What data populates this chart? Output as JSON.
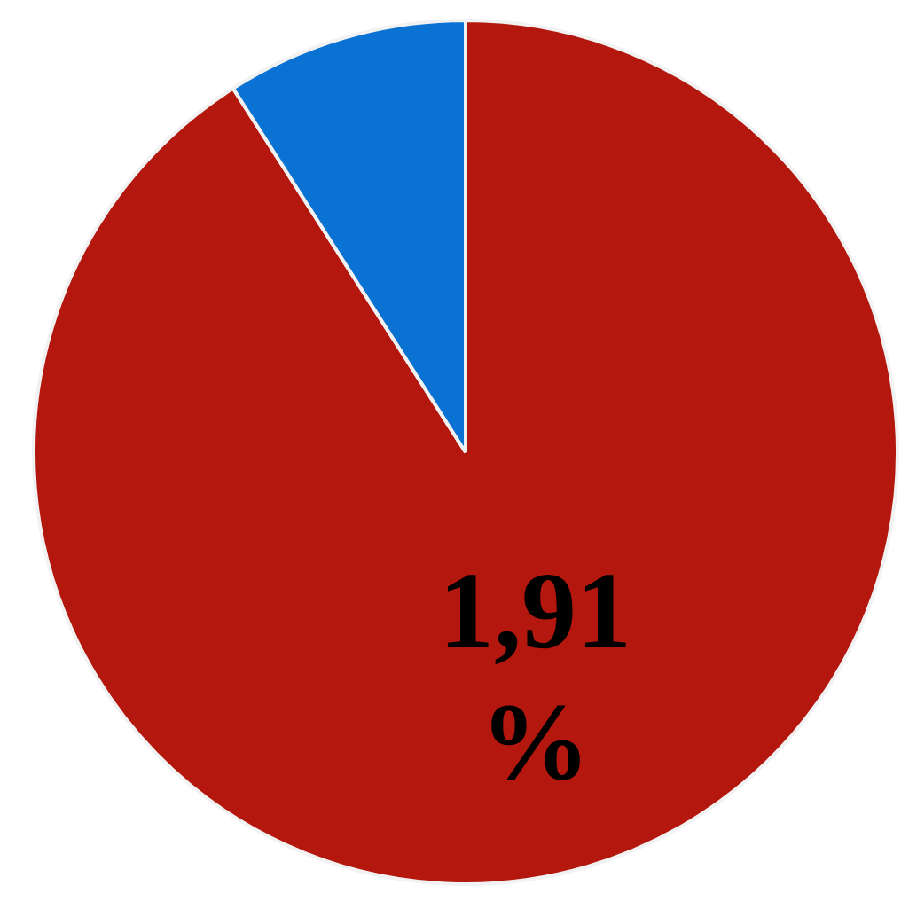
{
  "chart_data": {
    "type": "pie",
    "categories": [
      null,
      null
    ],
    "values": [
      1.91,
      0.19
    ],
    "colors": [
      "#b3170d",
      "#0a72d2"
    ],
    "value_labels": [
      "1,91 %",
      null
    ]
  }
}
